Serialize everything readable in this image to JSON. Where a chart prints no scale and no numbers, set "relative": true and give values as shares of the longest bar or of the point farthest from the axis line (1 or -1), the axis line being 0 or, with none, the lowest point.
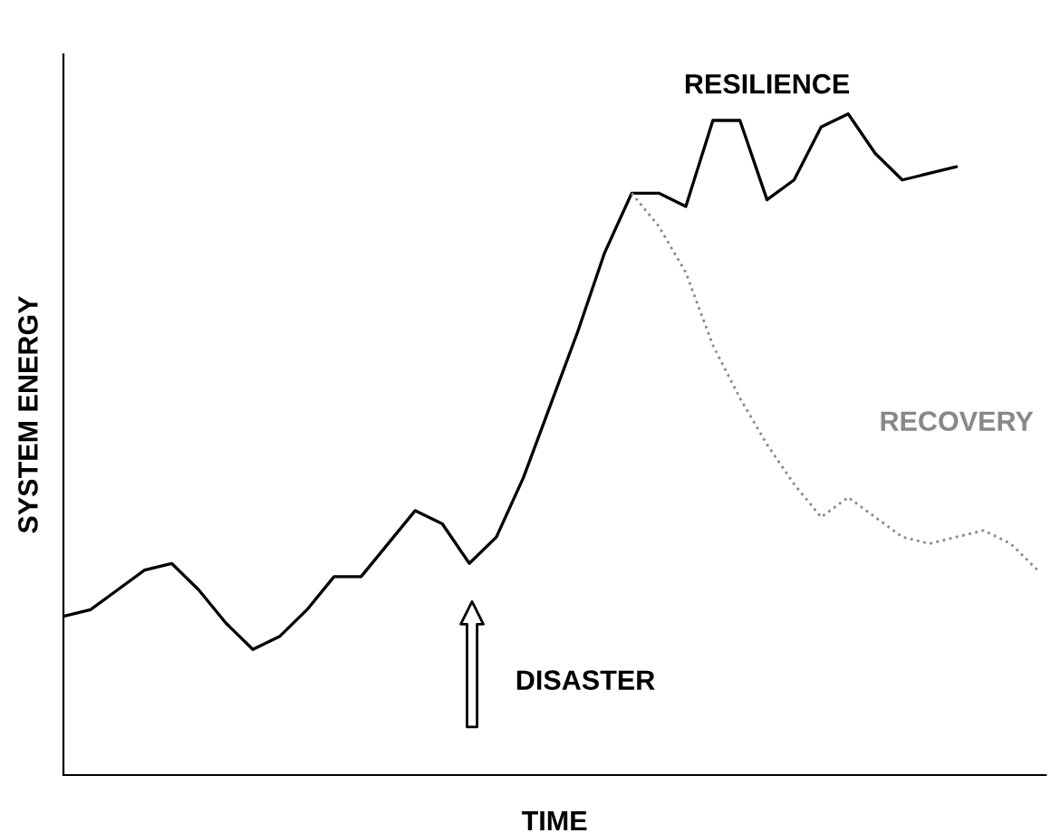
{
  "chart_data": {
    "type": "line",
    "relative": true,
    "xlabel": "TIME",
    "ylabel": "SYSTEM ENERGY",
    "categories": [
      null,
      null,
      null,
      null,
      null,
      null,
      null,
      null,
      null,
      null,
      null,
      null,
      null,
      null,
      null,
      null,
      null,
      null,
      null,
      null,
      null,
      null,
      null,
      null,
      null,
      null,
      null,
      null,
      null,
      null,
      null,
      null,
      null,
      null,
      null,
      null,
      null
    ],
    "series": [
      {
        "name": "RESILIENCE",
        "color": "#000000",
        "line_style": "solid",
        "values": [
          0.24,
          0.25,
          0.28,
          0.31,
          0.32,
          0.28,
          0.23,
          0.19,
          0.21,
          0.25,
          0.3,
          0.3,
          0.35,
          0.4,
          0.38,
          0.32,
          0.36,
          0.45,
          0.56,
          0.67,
          0.79,
          0.88,
          0.88,
          0.86,
          0.99,
          0.99,
          0.87,
          0.9,
          0.98,
          1.0,
          0.94,
          0.9,
          0.91,
          0.92,
          null,
          null,
          null
        ]
      },
      {
        "name": "RECOVERY",
        "color": "#888888",
        "line_style": "dotted",
        "values": [
          null,
          null,
          null,
          null,
          null,
          null,
          null,
          null,
          null,
          null,
          null,
          null,
          null,
          null,
          null,
          null,
          null,
          null,
          null,
          null,
          null,
          0.88,
          0.83,
          0.76,
          0.65,
          0.57,
          0.5,
          0.44,
          0.39,
          0.42,
          0.39,
          0.36,
          0.35,
          0.36,
          0.37,
          0.35,
          0.31
        ]
      }
    ],
    "annotations": [
      "DISASTER"
    ],
    "legend": false
  }
}
